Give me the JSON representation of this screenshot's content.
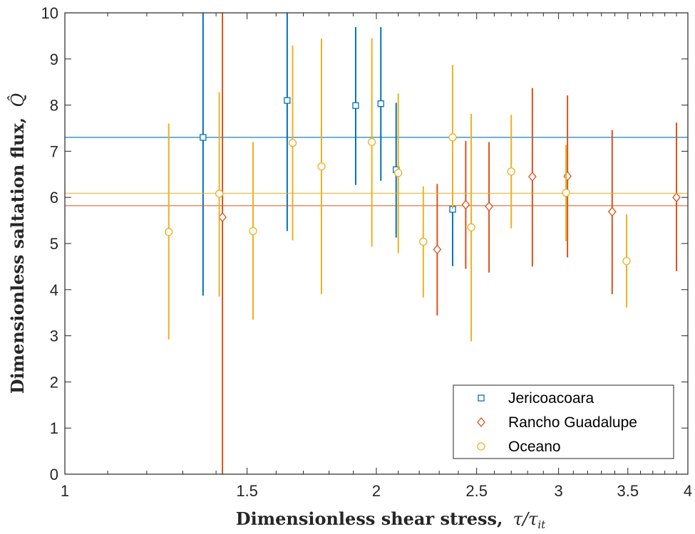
{
  "chart_data": {
    "type": "scatter",
    "xscale": "log",
    "xlim": [
      1,
      4
    ],
    "ylim": [
      0,
      10
    ],
    "xticks": [
      1,
      1.5,
      2,
      2.5,
      3,
      3.5,
      4
    ],
    "xtick_labels": [
      "1",
      "1.5",
      "2",
      "2.5",
      "3",
      "3.5",
      "4"
    ],
    "yticks": [
      0,
      1,
      2,
      3,
      4,
      5,
      6,
      7,
      8,
      9,
      10
    ],
    "ytick_labels": [
      "0",
      "1",
      "2",
      "3",
      "4",
      "5",
      "6",
      "7",
      "8",
      "9",
      "10"
    ],
    "xlabel": "Dimensionless shear stress,",
    "xlabel_math": "τ/τ",
    "xlabel_math_sub": "it",
    "ylabel": "Dimensionless saltation flux,",
    "ylabel_math": "Q̂",
    "grid": false,
    "legend_position": "bottom-right",
    "series": [
      {
        "name": "Jericoacoara",
        "color": "#0072BD",
        "marker": "square",
        "mean": 7.3,
        "points": [
          {
            "x": 1.36,
            "y": 7.3,
            "ylow": 3.87,
            "yhigh": 10.6
          },
          {
            "x": 1.64,
            "y": 8.1,
            "ylow": 5.27,
            "yhigh": 10.6
          },
          {
            "x": 1.91,
            "y": 7.99,
            "ylow": 6.27,
            "yhigh": 9.69
          },
          {
            "x": 2.02,
            "y": 8.03,
            "ylow": 6.36,
            "yhigh": 9.69
          },
          {
            "x": 2.09,
            "y": 6.6,
            "ylow": 5.13,
            "yhigh": 8.05
          },
          {
            "x": 2.37,
            "y": 5.74,
            "ylow": 4.51,
            "yhigh": 6.99
          }
        ]
      },
      {
        "name": "Rancho Guadalupe",
        "color": "#D95319",
        "marker": "diamond",
        "mean": 5.82,
        "points": [
          {
            "x": 1.42,
            "y": 5.57,
            "ylow": -1.0,
            "yhigh": 10.6
          },
          {
            "x": 2.29,
            "y": 4.87,
            "ylow": 3.44,
            "yhigh": 6.29
          },
          {
            "x": 2.44,
            "y": 5.84,
            "ylow": 4.45,
            "yhigh": 7.22
          },
          {
            "x": 2.57,
            "y": 5.8,
            "ylow": 4.37,
            "yhigh": 7.2
          },
          {
            "x": 2.83,
            "y": 6.45,
            "ylow": 4.5,
            "yhigh": 8.37
          },
          {
            "x": 3.06,
            "y": 6.46,
            "ylow": 4.7,
            "yhigh": 8.21
          },
          {
            "x": 3.38,
            "y": 5.69,
            "ylow": 3.9,
            "yhigh": 7.46
          },
          {
            "x": 3.9,
            "y": 6.0,
            "ylow": 4.4,
            "yhigh": 7.62
          }
        ]
      },
      {
        "name": "Oceano",
        "color": "#EDB120",
        "marker": "circle",
        "mean": 6.09,
        "points": [
          {
            "x": 1.26,
            "y": 5.25,
            "ylow": 2.92,
            "yhigh": 7.6
          },
          {
            "x": 1.41,
            "y": 6.08,
            "ylow": 3.85,
            "yhigh": 8.28
          },
          {
            "x": 1.52,
            "y": 5.27,
            "ylow": 3.35,
            "yhigh": 7.2
          },
          {
            "x": 1.66,
            "y": 7.18,
            "ylow": 5.07,
            "yhigh": 9.29
          },
          {
            "x": 1.77,
            "y": 6.67,
            "ylow": 3.9,
            "yhigh": 9.44
          },
          {
            "x": 1.98,
            "y": 7.2,
            "ylow": 4.93,
            "yhigh": 9.45
          },
          {
            "x": 2.1,
            "y": 6.53,
            "ylow": 4.79,
            "yhigh": 8.25
          },
          {
            "x": 2.22,
            "y": 5.04,
            "ylow": 3.83,
            "yhigh": 6.24
          },
          {
            "x": 2.37,
            "y": 7.3,
            "ylow": 5.75,
            "yhigh": 8.87
          },
          {
            "x": 2.47,
            "y": 5.35,
            "ylow": 2.88,
            "yhigh": 7.81
          },
          {
            "x": 2.7,
            "y": 6.56,
            "ylow": 5.33,
            "yhigh": 7.79
          },
          {
            "x": 3.05,
            "y": 6.1,
            "ylow": 5.05,
            "yhigh": 7.14
          },
          {
            "x": 3.49,
            "y": 4.62,
            "ylow": 3.61,
            "yhigh": 5.63
          }
        ]
      }
    ]
  }
}
